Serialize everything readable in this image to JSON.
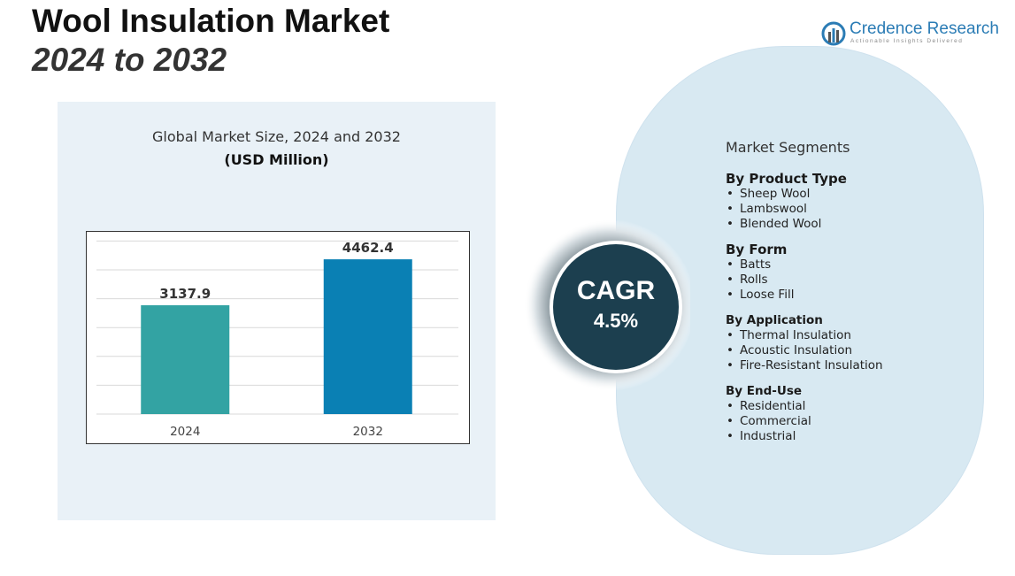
{
  "header": {
    "title": "Wool Insulation Market",
    "subtitle": "2024 to 2032"
  },
  "logo": {
    "name": "Credence Research",
    "tagline": "Actionable Insights Delivered",
    "icon": "bar-chart-logo-icon"
  },
  "chart_panel": {
    "title": "Global Market Size, 2024 and 2032",
    "unit": "(USD Million)"
  },
  "chart_data": {
    "type": "bar",
    "categories": [
      "2024",
      "2032"
    ],
    "values": [
      3137.9,
      4462.4
    ],
    "value_labels": [
      "3137.9",
      "4462.4"
    ],
    "colors": [
      "#33a3a3",
      "#0a80b4"
    ],
    "ylim": [
      0,
      5000
    ],
    "grid": true
  },
  "cagr": {
    "label": "CAGR",
    "value": "4.5%"
  },
  "segments": {
    "heading": "Market Segments",
    "groups": [
      {
        "title": "By Product Type",
        "items": [
          "Sheep Wool",
          "Lambswool",
          "Blended Wool"
        ]
      },
      {
        "title": "By Form",
        "items": [
          "Batts",
          "Rolls",
          "Loose Fill"
        ]
      },
      {
        "title": "By Application",
        "items": [
          "Thermal Insulation",
          "Acoustic Insulation",
          "Fire-Resistant Insulation"
        ]
      },
      {
        "title": "By End-Use",
        "items": [
          "Residential",
          "Commercial",
          "Industrial"
        ]
      }
    ]
  },
  "colors": {
    "panel_bg": "#e9f1f7",
    "segments_bg": "#d8e9f2",
    "cagr_circle": "#1c3f4f",
    "brand": "#2b7cb5"
  }
}
